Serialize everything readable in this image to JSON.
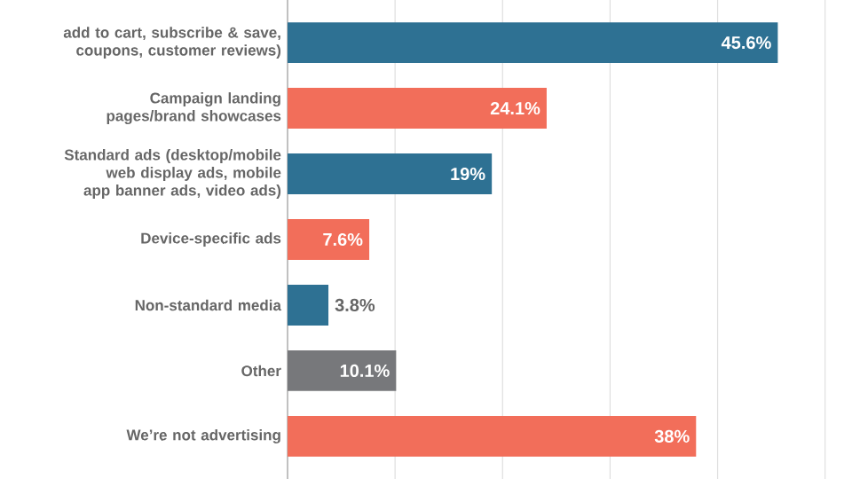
{
  "chart_data": {
    "type": "bar",
    "orientation": "horizontal",
    "categories": [
      "add to cart, subscribe & save, coupons, customer reviews)",
      "Campaign landing pages/brand showcases",
      "Standard ads (desktop/mobile web display ads, mobile app banner ads, video ads)",
      "Device-specific ads",
      "Non-standard media",
      "Other",
      "We’re not advertising"
    ],
    "values": [
      45.6,
      24.1,
      19,
      7.6,
      3.8,
      10.1,
      38
    ],
    "colors": [
      "#2e7193",
      "#f26e5a",
      "#2e7193",
      "#f26e5a",
      "#2e7193",
      "#77787b",
      "#f26e5a"
    ],
    "value_labels": [
      "45.6%",
      "24.1%",
      "19%",
      "7.6%",
      "3.8%",
      "10.1%",
      "38%"
    ],
    "xticks": [
      {
        "value": 10,
        "label": null
      },
      {
        "value": 20,
        "label": null
      },
      {
        "value": 30,
        "label": null
      },
      {
        "value": 40,
        "label": null
      },
      {
        "value": 50,
        "label": null
      }
    ],
    "grid": "x",
    "tick_labels": "y"
  }
}
